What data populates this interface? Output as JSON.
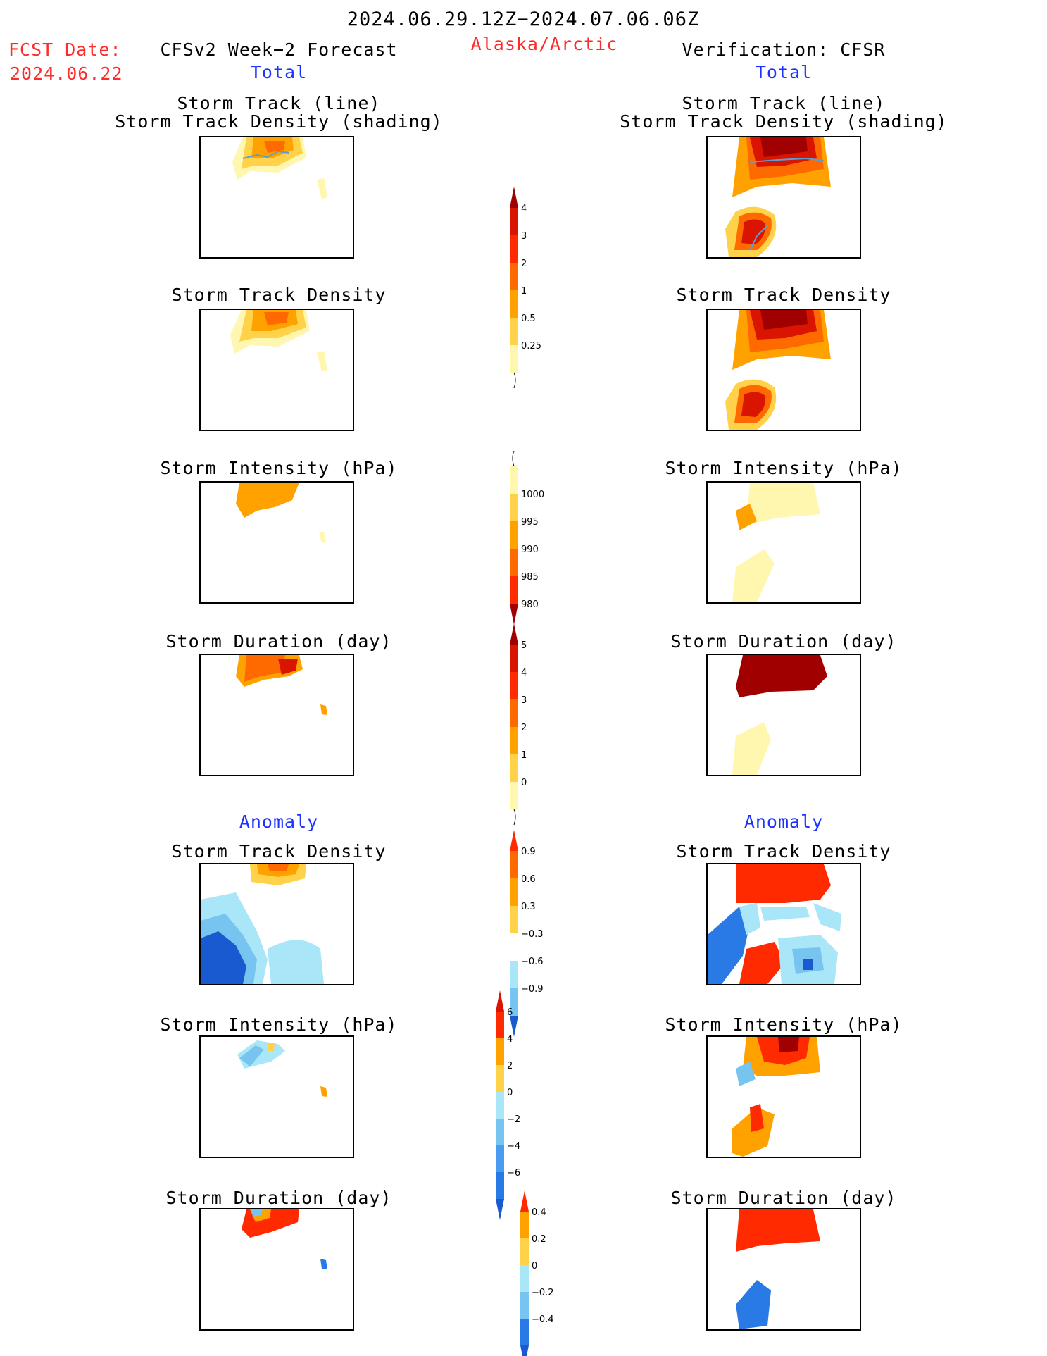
{
  "header": {
    "period": "2024.06.29.12Z−2024.07.06.06Z",
    "fcst_date_label": "FCST Date:",
    "fcst_date": "2024.06.22",
    "left_title": "CFSv2 Week−2 Forecast",
    "region": "Alaska/Arctic",
    "right_title": "Verification: CFSR"
  },
  "sections": {
    "total": "Total",
    "anomaly": "Anomaly"
  },
  "panel_titles": {
    "track_line": "Storm Track (line)",
    "track_shading": "Storm Track Density (shading)",
    "density": "Storm Track Density",
    "intensity": "Storm Intensity (hPa)",
    "duration": "Storm Duration (day)"
  },
  "colorbars": {
    "density_total": [
      "4",
      "3",
      "2",
      "1",
      "0.5",
      "0.25"
    ],
    "intensity_total": [
      "1000",
      "995",
      "990",
      "985",
      "980"
    ],
    "duration_total": [
      "5",
      "4",
      "3",
      "2",
      "1",
      "0"
    ],
    "density_anom": [
      "0.9",
      "0.6",
      "0.3",
      "−0.3",
      "−0.6",
      "−0.9"
    ],
    "intensity_anom": [
      "6",
      "4",
      "2",
      "0",
      "−2",
      "−4",
      "−6"
    ],
    "duration_anom": [
      "0.4",
      "0.2",
      "0",
      "−0.2",
      "−0.4"
    ]
  },
  "colors": {
    "warm": [
      "#fff7b0",
      "#ffd24a",
      "#ffa200",
      "#ff6a00",
      "#ff2a00",
      "#d91400",
      "#a00000"
    ],
    "cool": [
      "#c8f2ff",
      "#a8e6f8",
      "#78c4f0",
      "#4a9cf0",
      "#2a7ae6",
      "#1a5ad0"
    ]
  }
}
